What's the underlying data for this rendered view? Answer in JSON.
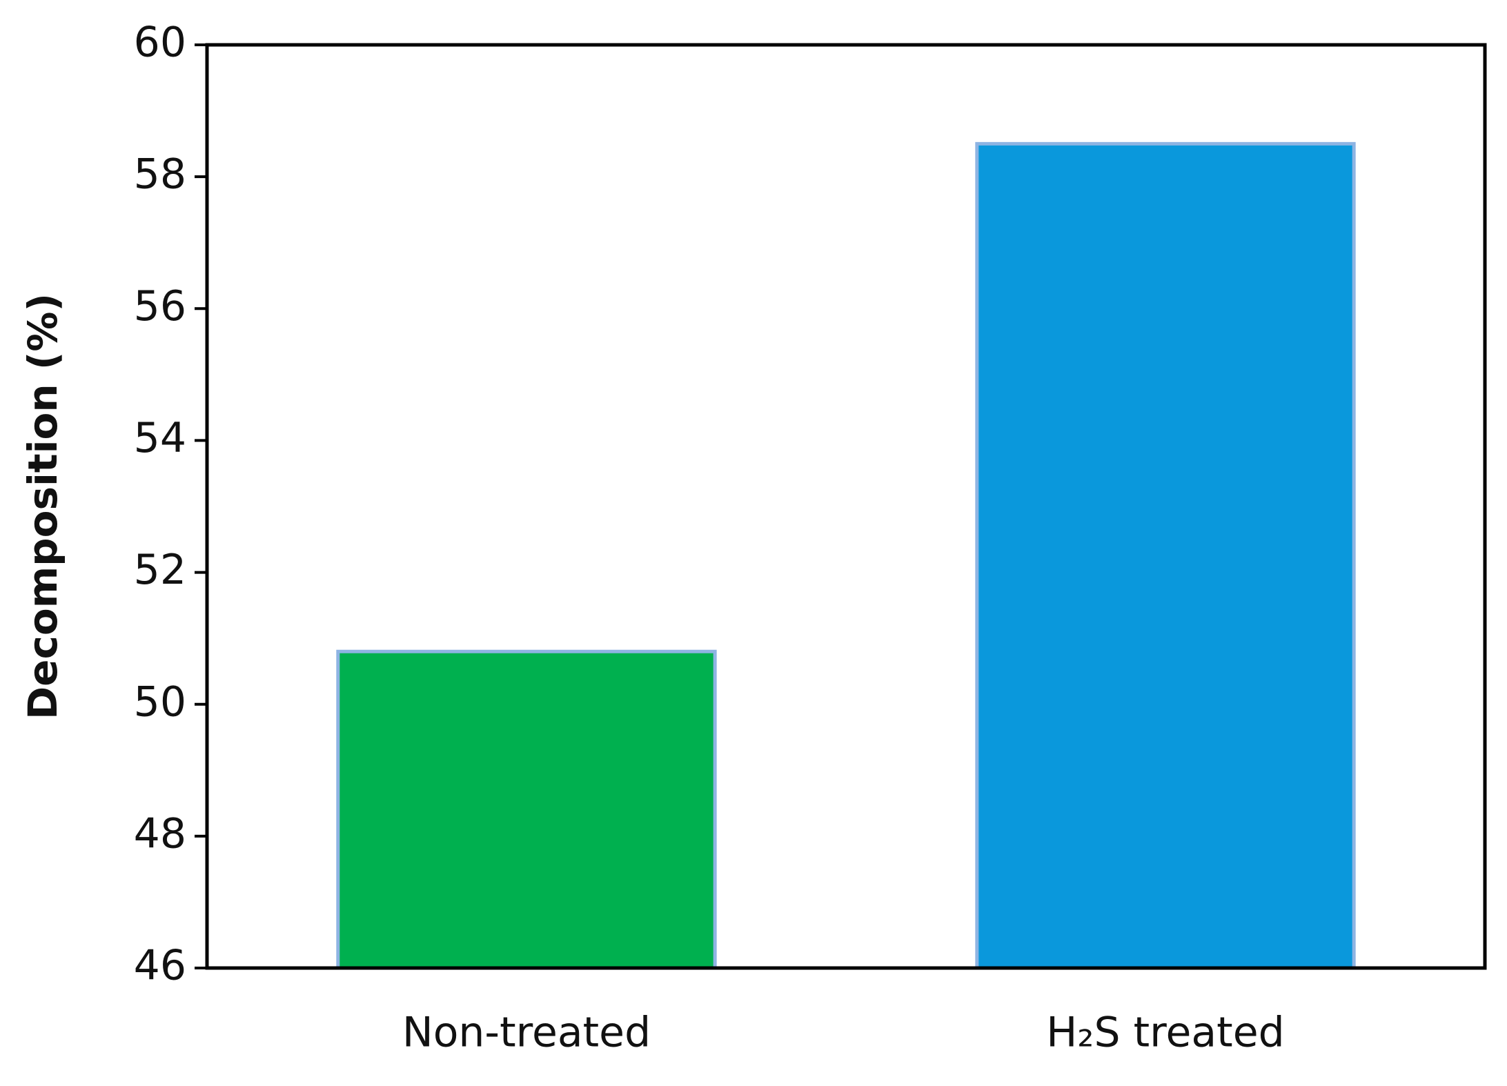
{
  "chart_data": {
    "type": "bar",
    "y_label": "Decomposition (%)",
    "categories": [
      "Non-treated",
      "H₂S treated"
    ],
    "values": [
      50.8,
      58.5
    ],
    "colors": [
      "#00b04f",
      "#0a98dc"
    ],
    "ylim": [
      46,
      60
    ],
    "yticks": [
      46,
      48,
      50,
      52,
      54,
      56,
      58,
      60
    ],
    "grid": false
  }
}
